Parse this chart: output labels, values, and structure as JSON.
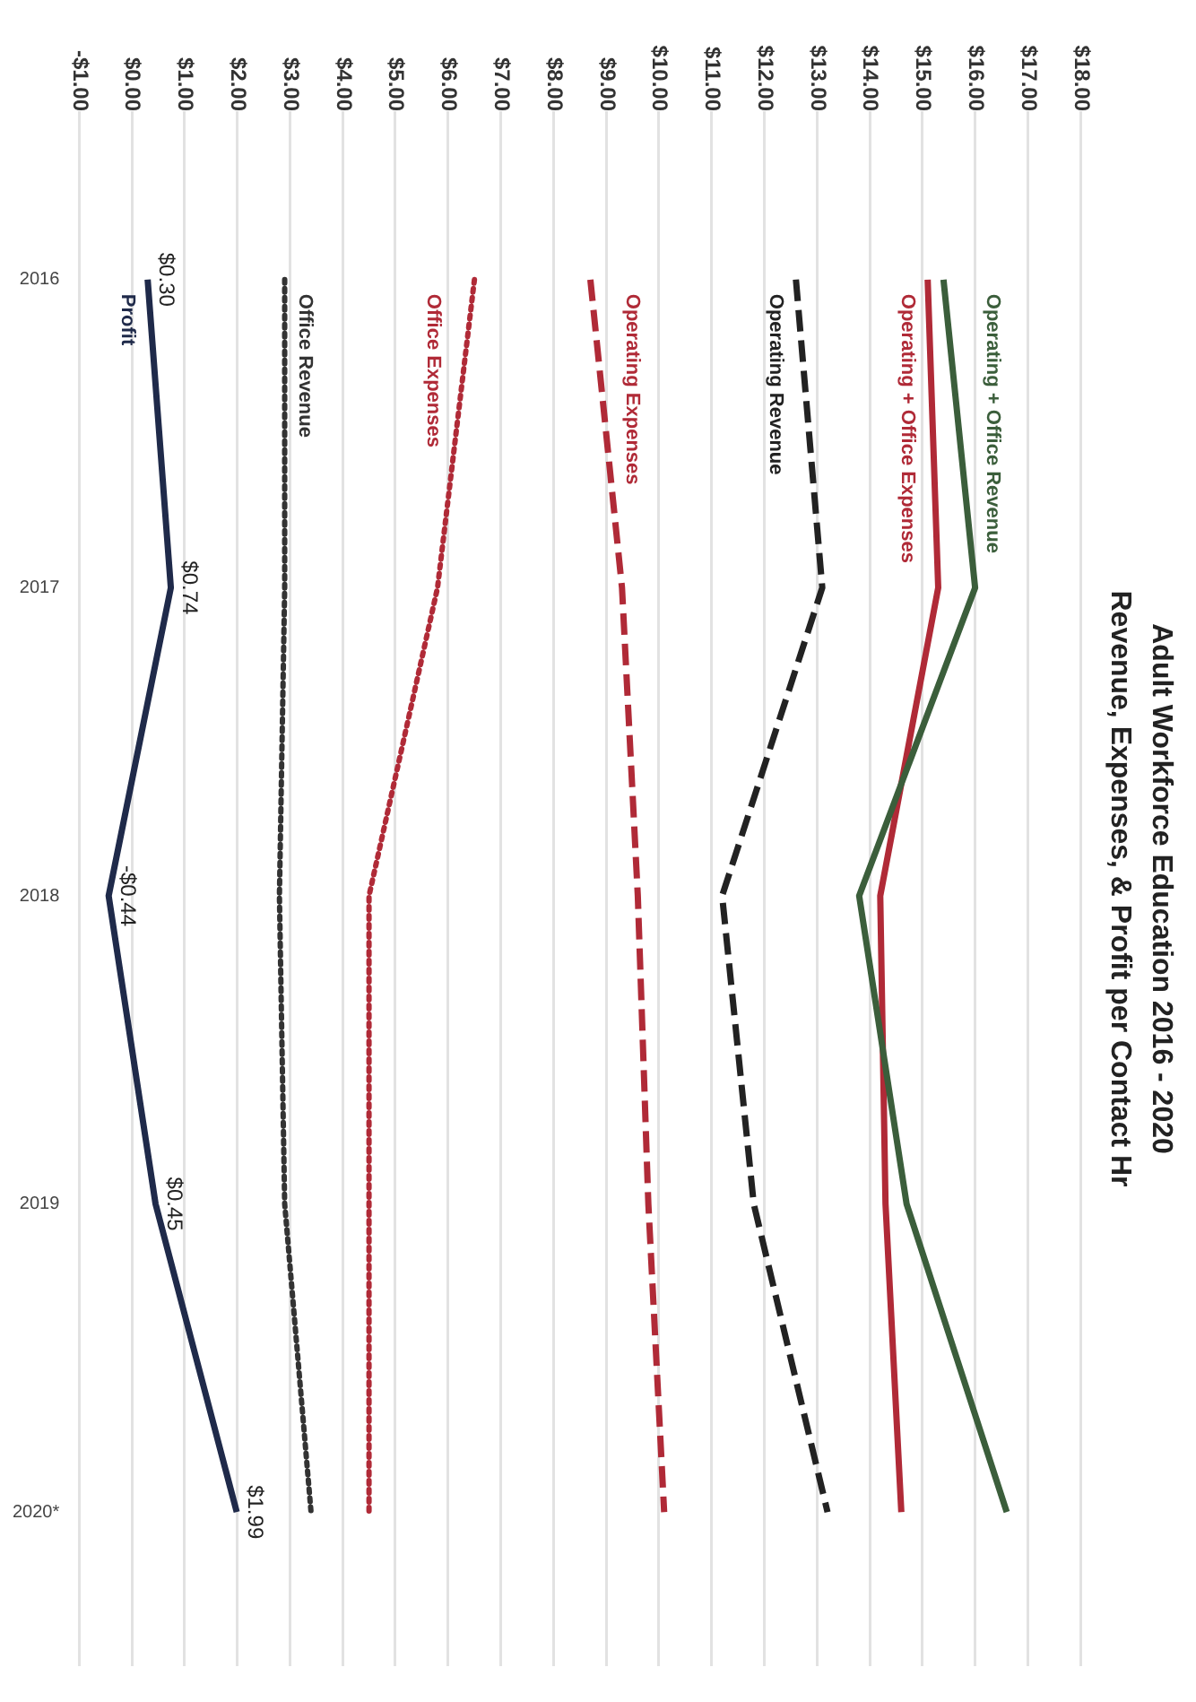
{
  "chart_data": {
    "type": "line",
    "title": "Adult Workforce Education 2016 - 2020",
    "subtitle": "Revenue, Expenses, & Profit per Contact Hr",
    "categories": [
      "2016",
      "2017",
      "2018",
      "2019",
      "2020*"
    ],
    "series": [
      {
        "name": "Operating + Office Revenue",
        "color": "#3b5e3b",
        "line_style": "solid",
        "values": [
          15.4,
          16.0,
          13.8,
          14.7,
          16.6
        ]
      },
      {
        "name": "Operating + Office Expenses",
        "color": "#b02a37",
        "line_style": "solid",
        "values": [
          15.1,
          15.3,
          14.2,
          14.3,
          14.6
        ]
      },
      {
        "name": "Operating Revenue",
        "color": "#222222",
        "line_style": "dashed",
        "values": [
          12.6,
          13.1,
          11.2,
          11.8,
          13.2
        ]
      },
      {
        "name": "Operating Expenses",
        "color": "#b02a37",
        "line_style": "dashed",
        "values": [
          8.7,
          9.3,
          9.6,
          9.8,
          10.1
        ]
      },
      {
        "name": "Office Expenses",
        "color": "#b02a37",
        "line_style": "dotted",
        "values": [
          6.5,
          5.8,
          4.5,
          4.5,
          4.5
        ]
      },
      {
        "name": "Office Revenue",
        "color": "#333333",
        "line_style": "dotted",
        "values": [
          2.9,
          2.9,
          2.8,
          2.9,
          3.4
        ]
      },
      {
        "name": "Profit",
        "color": "#1f2a4a",
        "line_style": "solid",
        "values": [
          0.3,
          0.74,
          -0.44,
          0.45,
          1.99
        ],
        "value_labels": [
          "$0.30",
          "$0.74",
          "-$0.44",
          "$0.45",
          "$1.99"
        ]
      }
    ],
    "orientation": "horizontal",
    "xlim": [
      -1,
      18
    ],
    "xticks": [
      {
        "value": -1,
        "label": "-$1.00"
      },
      {
        "value": 0,
        "label": "$0.00"
      },
      {
        "value": 1,
        "label": "$1.00"
      },
      {
        "value": 2,
        "label": "$2.00"
      },
      {
        "value": 3,
        "label": "$3.00"
      },
      {
        "value": 4,
        "label": "$4.00"
      },
      {
        "value": 5,
        "label": "$5.00"
      },
      {
        "value": 6,
        "label": "$6.00"
      },
      {
        "value": 7,
        "label": "$7.00"
      },
      {
        "value": 8,
        "label": "$8.00"
      },
      {
        "value": 9,
        "label": "$9.00"
      },
      {
        "value": 10,
        "label": "$10.00"
      },
      {
        "value": 11,
        "label": "$11.00"
      },
      {
        "value": 12,
        "label": "$12.00"
      },
      {
        "value": 13,
        "label": "$13.00"
      },
      {
        "value": 14,
        "label": "$14.00"
      },
      {
        "value": 15,
        "label": "$15.00"
      },
      {
        "value": 16,
        "label": "$16.00"
      },
      {
        "value": 17,
        "label": "$17.00"
      },
      {
        "value": 18,
        "label": "$18.00"
      }
    ],
    "grid": "x",
    "legend": false,
    "marker": "none"
  }
}
